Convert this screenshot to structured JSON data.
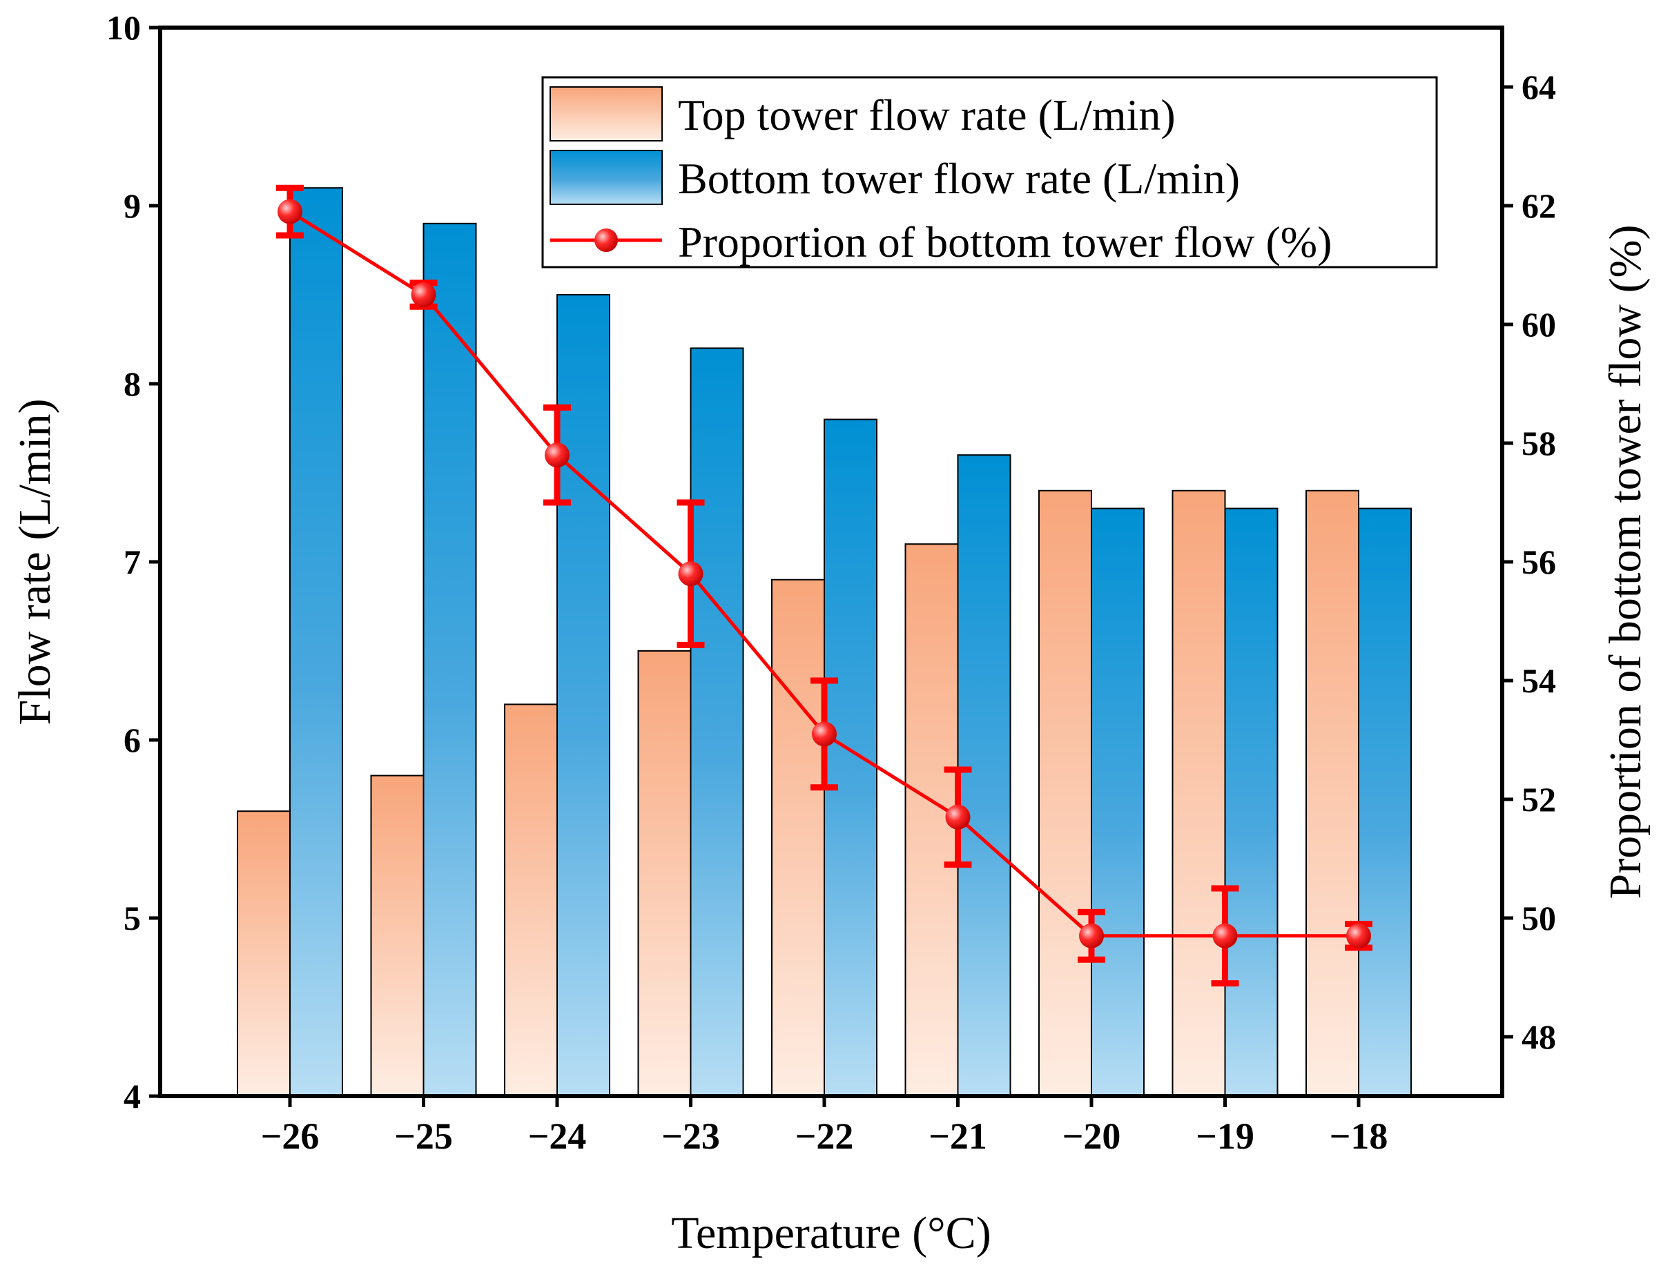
{
  "chart_data": {
    "type": "bar",
    "title": "",
    "categories": [
      "−26",
      "−25",
      "−24",
      "−23",
      "−22",
      "−21",
      "−20",
      "−19",
      "−18"
    ],
    "xlabel": "Temperature (°C)",
    "ylabel": "Flow rate (L/min)",
    "y2label": "Proportion of bottom tower flow (%)",
    "ylim": [
      4,
      10
    ],
    "y2lim": [
      47,
      65
    ],
    "yticks": [
      "4",
      "5",
      "6",
      "7",
      "8",
      "9",
      "10"
    ],
    "y2ticks": [
      "48",
      "50",
      "52",
      "54",
      "56",
      "58",
      "60",
      "62",
      "64"
    ],
    "series": [
      {
        "name": "Top tower flow rate (L/min)",
        "kind": "bar",
        "axis": "left",
        "color_top": "#F8A57A",
        "color_bottom": "#FEEDE3",
        "values": [
          5.6,
          5.8,
          6.2,
          6.5,
          6.9,
          7.1,
          7.4,
          7.4,
          7.4
        ]
      },
      {
        "name": "Bottom tower flow rate (L/min)",
        "kind": "bar",
        "axis": "left",
        "color_top": "#0090D4",
        "color_bottom": "#B8DEF4",
        "values": [
          9.1,
          8.9,
          8.5,
          8.2,
          7.8,
          7.6,
          7.3,
          7.3,
          7.3
        ]
      },
      {
        "name": "Proportion of bottom tower flow (%)",
        "kind": "line",
        "axis": "right",
        "color": "#FF0000",
        "values": [
          61.9,
          60.5,
          57.8,
          55.8,
          53.1,
          51.7,
          49.7,
          49.7,
          49.7
        ],
        "errors": [
          0.4,
          0.2,
          0.8,
          1.2,
          0.9,
          0.8,
          0.4,
          0.8,
          0.2
        ]
      }
    ],
    "legend": {
      "position": "top-right"
    },
    "grid": false
  }
}
